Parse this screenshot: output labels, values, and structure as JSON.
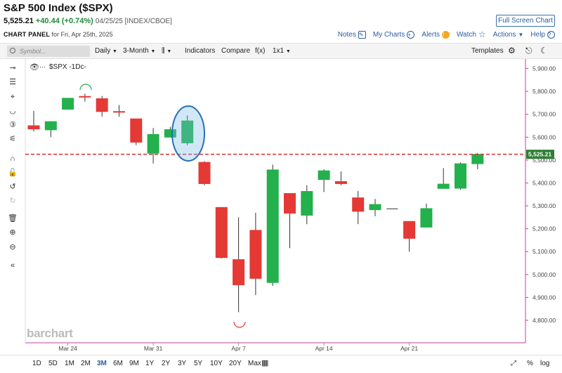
{
  "header": {
    "title": "S&P 500 Index ($SPX)",
    "price": "5,525.21",
    "change": "+40.44 (+0.74%)",
    "meta": "04/25/25 [INDEX/CBOE]",
    "full_screen_label": "Full Screen Chart",
    "panel_label": "CHART PANEL",
    "panel_date": "for Fri, Apr 25th, 2025",
    "links": {
      "notes": "Notes",
      "my_charts": "My Charts",
      "alerts": "Alerts",
      "watch": "Watch",
      "actions": "Actions",
      "help": "Help"
    }
  },
  "toolbar": {
    "search_placeholder": "Symbol...",
    "period": "Daily",
    "range": "3-Month",
    "chart_type_icon": "candles-icon",
    "indicators": "Indicators",
    "compare": "Compare",
    "fx": "f(x)",
    "layout": "1x1",
    "templates": "Templates"
  },
  "chart_label": "$SPX -1Dc-",
  "chart_data": {
    "type": "candlestick",
    "x_ticks": [
      "Mar 24",
      "Mar 31",
      "Apr 7",
      "Apr 14",
      "Apr 21"
    ],
    "y_ticks": [
      "5,900.00",
      "5,800.00",
      "5,700.00",
      "5,600.00",
      "5,500.00",
      "5,400.00",
      "5,300.00",
      "5,200.00",
      "5,100.00",
      "5,000.00",
      "4,900.00",
      "4,800.00"
    ],
    "ylim": [
      4760,
      5920
    ],
    "last_price_label": "5,525.21",
    "last_price": 5525.21,
    "candles": [
      {
        "o": 5650,
        "h": 5715,
        "l": 5625,
        "c": 5636
      },
      {
        "o": 5632,
        "h": 5670,
        "l": 5600,
        "c": 5668
      },
      {
        "o": 5722,
        "h": 5770,
        "l": 5720,
        "c": 5770
      },
      {
        "o": 5778,
        "h": 5790,
        "l": 5755,
        "c": 5776
      },
      {
        "o": 5768,
        "h": 5780,
        "l": 5690,
        "c": 5712
      },
      {
        "o": 5712,
        "h": 5740,
        "l": 5690,
        "c": 5711
      },
      {
        "o": 5680,
        "h": 5680,
        "l": 5565,
        "c": 5578
      },
      {
        "o": 5530,
        "h": 5640,
        "l": 5485,
        "c": 5612
      },
      {
        "o": 5600,
        "h": 5645,
        "l": 5600,
        "c": 5633
      },
      {
        "o": 5575,
        "h": 5695,
        "l": 5565,
        "c": 5671
      },
      {
        "o": 5490,
        "h": 5495,
        "l": 5390,
        "c": 5397
      },
      {
        "o": 5293,
        "h": 5293,
        "l": 5070,
        "c": 5074
      },
      {
        "o": 5065,
        "h": 5250,
        "l": 4835,
        "c": 4955
      },
      {
        "o": 5193,
        "h": 5270,
        "l": 4910,
        "c": 4983
      },
      {
        "o": 4965,
        "h": 5480,
        "l": 4950,
        "c": 5457
      },
      {
        "o": 5354,
        "h": 5354,
        "l": 5115,
        "c": 5268
      },
      {
        "o": 5259,
        "h": 5390,
        "l": 5220,
        "c": 5363
      },
      {
        "o": 5415,
        "h": 5460,
        "l": 5360,
        "c": 5453
      },
      {
        "o": 5406,
        "h": 5450,
        "l": 5390,
        "c": 5397
      },
      {
        "o": 5335,
        "h": 5365,
        "l": 5220,
        "c": 5276
      },
      {
        "o": 5283,
        "h": 5330,
        "l": 5255,
        "c": 5306
      },
      {
        "o": 5287,
        "h": 5287,
        "l": 5287,
        "c": 5287
      },
      {
        "o": 5232,
        "h": 5232,
        "l": 5100,
        "c": 5158
      },
      {
        "o": 5207,
        "h": 5310,
        "l": 5205,
        "c": 5288
      },
      {
        "o": 5376,
        "h": 5465,
        "l": 5375,
        "c": 5395
      },
      {
        "o": 5377,
        "h": 5490,
        "l": 5370,
        "c": 5484
      },
      {
        "o": 5484,
        "h": 5530,
        "l": 5460,
        "c": 5525
      }
    ]
  },
  "watermark": "barchart",
  "ranges": [
    "1D",
    "5D",
    "1M",
    "2M",
    "3M",
    "6M",
    "9M",
    "1Y",
    "2Y",
    "3Y",
    "5Y",
    "10Y",
    "20Y",
    "Max"
  ],
  "active_range": "3M",
  "bottom_right": {
    "percent": "%",
    "log": "log"
  },
  "colors": {
    "up": "#22b14c",
    "down": "#e53935",
    "accent": "#2a5d9f",
    "last_line": "#d32f2f",
    "axis_border": "#c43fa0"
  }
}
